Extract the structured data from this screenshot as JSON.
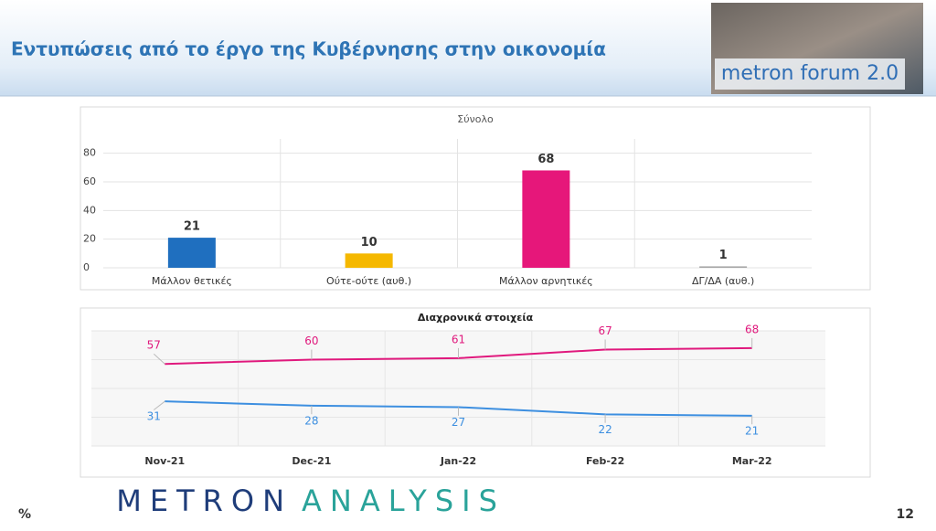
{
  "header": {
    "title": "Εντυπώσεις από το έργο της Κυβέρνησης στην οικονομία",
    "logo": "metron forum 2.0"
  },
  "chart_data": [
    {
      "type": "bar",
      "title": "Σύνολο",
      "categories": [
        "Μάλλον θετικές",
        "Ούτε-ούτε (αυθ.)",
        "Μάλλον αρνητικές",
        "ΔΓ/ΔΑ (αυθ.)"
      ],
      "values": [
        21,
        10,
        68,
        1
      ],
      "colors": [
        "#1f6fbf",
        "#f5b800",
        "#e6177a",
        "#a6a6a6"
      ],
      "ylim": [
        0,
        90
      ],
      "yticks": [
        0,
        20,
        40,
        60,
        80
      ],
      "grid": true
    },
    {
      "type": "line",
      "title": "Διαχρονικά στοιχεία",
      "categories": [
        "Nov-21",
        "Dec-21",
        "Jan-22",
        "Feb-22",
        "Mar-22"
      ],
      "series": [
        {
          "color": "#e0197d",
          "values": [
            57,
            60,
            61,
            67,
            68
          ]
        },
        {
          "color": "#3d8fe0",
          "values": [
            31,
            28,
            27,
            22,
            21
          ]
        }
      ],
      "ylim": [
        0,
        80
      ]
    }
  ],
  "footer": {
    "brand_left": "METRON",
    "brand_right": "ANALYSIS",
    "unit": "%",
    "page": "12"
  }
}
